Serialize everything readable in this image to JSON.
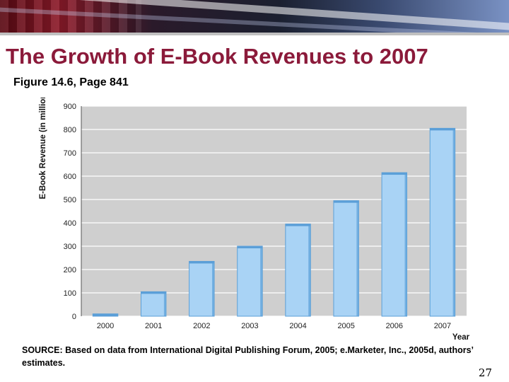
{
  "slide": {
    "title": "The Growth of E-Book Revenues to 2007",
    "subtitle": "Figure 14.6, Page 841",
    "source": "SOURCE: Based on data from International Digital Publishing Forum, 2005; e.Marketer, Inc., 2005d, authors’ estimates.",
    "page_number": "27"
  },
  "colors": {
    "title": "#8b1a3a",
    "plot_background": "#cfcfcf",
    "gridline": "#ffffff",
    "bar_fill": "#a9d3f5",
    "bar_edge": "#5b9fd8"
  },
  "chart_data": {
    "type": "bar",
    "title": "",
    "xlabel": "Year",
    "ylabel": "E-Book Revenue (in millions)",
    "categories": [
      "2000",
      "2001",
      "2002",
      "2003",
      "2004",
      "2005",
      "2006",
      "2007"
    ],
    "values": [
      10,
      105,
      235,
      300,
      395,
      495,
      615,
      805
    ],
    "ylim": [
      0,
      900
    ],
    "yticks": [
      "0",
      "100",
      "200",
      "300",
      "400",
      "500",
      "600",
      "700",
      "800",
      "900"
    ],
    "grid": true,
    "legend": "none"
  }
}
